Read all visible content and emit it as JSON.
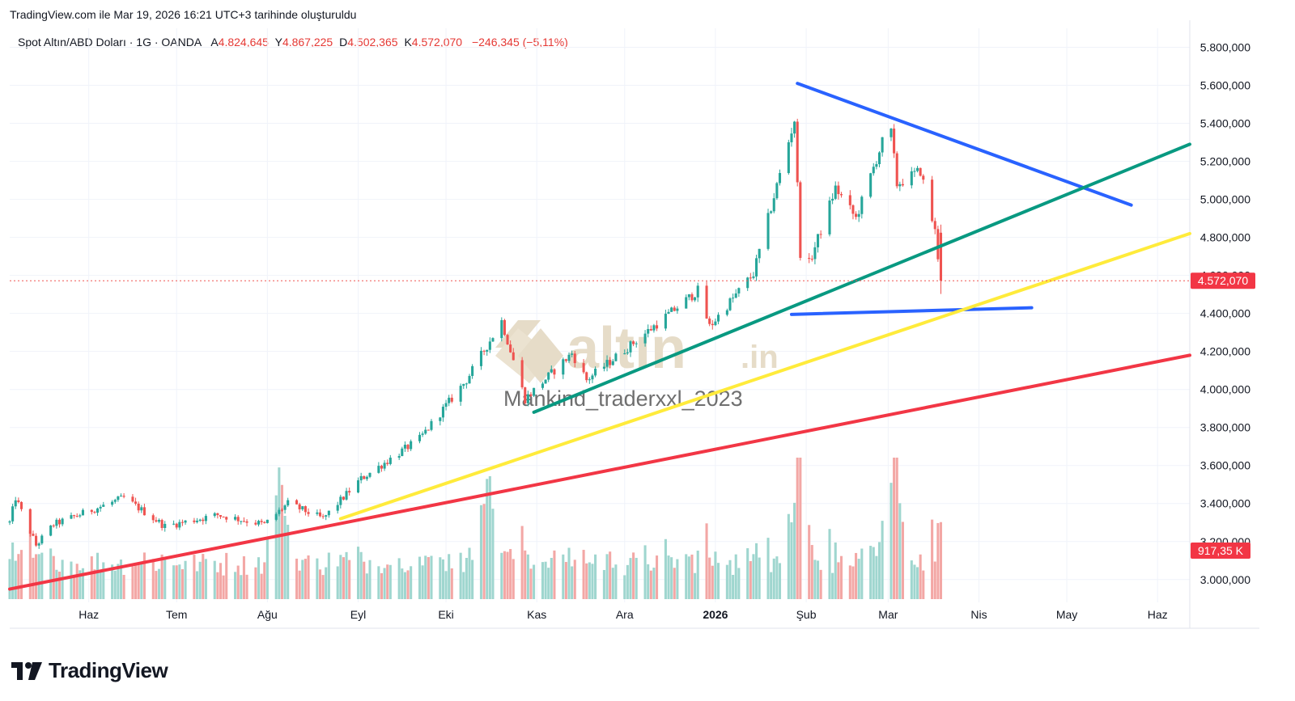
{
  "header": {
    "snapshot_text": "TradingView.com ile Mar 19, 2026 16:21 UTC+3 tarihinde oluşturuldu"
  },
  "symbol": {
    "name": "Spot Altın/ABD Doları · 1G · OANDA",
    "open_label": "A",
    "open_value": "4.824,645",
    "high_label": "Y",
    "high_value": "4.867,225",
    "low_label": "D",
    "low_value": "4.502,365",
    "close_label": "K",
    "close_value": "4.572,070",
    "change": "−246,345 (−5,11%)"
  },
  "price_tag": "4.572,070",
  "volume_tag": "917,35 K",
  "watermark": {
    "brand": "altın",
    "brand_suffix": ".in",
    "user": "Mankind_traderxxl_2023"
  },
  "footer": {
    "logo_text": "TradingView"
  },
  "colors": {
    "up": "#26a69a",
    "down": "#ef5350",
    "vol_up": "#9fd6cf",
    "vol_down": "#f3a7a5",
    "trend_blue": "#2962ff",
    "trend_green": "#089981",
    "trend_yellow": "#ffeb3b",
    "trend_red": "#f23645"
  },
  "chart_data": {
    "type": "candlestick",
    "title": "Spot Altın/ABD Doları · 1G · OANDA",
    "y_ticks": [
      "5.800,000",
      "5.600,000",
      "5.400,000",
      "5.200,000",
      "5.000,000",
      "4.800,000",
      "4.600,000",
      "4.400,000",
      "4.200,000",
      "4.000,000",
      "3.800,000",
      "3.600,000",
      "3.400,000",
      "3.200,000",
      "3.000,000"
    ],
    "y_tick_values": [
      5800,
      5600,
      5400,
      5200,
      5000,
      4800,
      4600,
      4400,
      4200,
      4000,
      3800,
      3600,
      3400,
      3200,
      3000
    ],
    "ylim": [
      2880,
      5900
    ],
    "x_ticks": [
      {
        "label": "Haz",
        "date": "2025-06-01",
        "bold": false
      },
      {
        "label": "Tem",
        "date": "2025-07-01",
        "bold": false
      },
      {
        "label": "Ağu",
        "date": "2025-08-01",
        "bold": false
      },
      {
        "label": "Eyl",
        "date": "2025-09-01",
        "bold": false
      },
      {
        "label": "Eki",
        "date": "2025-10-01",
        "bold": false
      },
      {
        "label": "Kas",
        "date": "2025-11-01",
        "bold": false
      },
      {
        "label": "Ara",
        "date": "2025-12-01",
        "bold": false
      },
      {
        "label": "2026",
        "date": "2026-01-01",
        "bold": true
      },
      {
        "label": "Şub",
        "date": "2026-02-01",
        "bold": false
      },
      {
        "label": "Mar",
        "date": "2026-03-01",
        "bold": false
      },
      {
        "label": "Nis",
        "date": "2026-04-01",
        "bold": false
      },
      {
        "label": "May",
        "date": "2026-05-01",
        "bold": false
      },
      {
        "label": "Haz",
        "date": "2026-06-01",
        "bold": false
      }
    ],
    "xlim": [
      "2025-05-05",
      "2026-06-12"
    ],
    "price_points": [
      {
        "date": "2025-05-05",
        "close": 3300
      },
      {
        "date": "2025-05-07",
        "close": 3430
      },
      {
        "date": "2025-05-14",
        "close": 3180
      },
      {
        "date": "2025-05-20",
        "close": 3290
      },
      {
        "date": "2025-06-01",
        "close": 3360
      },
      {
        "date": "2025-06-13",
        "close": 3430
      },
      {
        "date": "2025-06-27",
        "close": 3280
      },
      {
        "date": "2025-07-15",
        "close": 3340
      },
      {
        "date": "2025-07-31",
        "close": 3290
      },
      {
        "date": "2025-08-08",
        "close": 3400
      },
      {
        "date": "2025-08-20",
        "close": 3320
      },
      {
        "date": "2025-09-02",
        "close": 3530
      },
      {
        "date": "2025-09-22",
        "close": 3740
      },
      {
        "date": "2025-10-08",
        "close": 4050
      },
      {
        "date": "2025-10-20",
        "close": 4360
      },
      {
        "date": "2025-10-28",
        "close": 3950
      },
      {
        "date": "2025-11-13",
        "close": 4190
      },
      {
        "date": "2025-11-18",
        "close": 4050
      },
      {
        "date": "2025-12-02",
        "close": 4220
      },
      {
        "date": "2025-12-26",
        "close": 4520
      },
      {
        "date": "2025-12-30",
        "close": 4330
      },
      {
        "date": "2026-01-14",
        "close": 4610
      },
      {
        "date": "2026-01-28",
        "close": 5420
      },
      {
        "date": "2026-01-30",
        "close": 4720
      },
      {
        "date": "2026-02-02",
        "close": 4660
      },
      {
        "date": "2026-02-11",
        "close": 5060
      },
      {
        "date": "2026-02-18",
        "close": 4900
      },
      {
        "date": "2026-02-27",
        "close": 5300
      },
      {
        "date": "2026-03-02",
        "close": 5350
      },
      {
        "date": "2026-03-04",
        "close": 5080
      },
      {
        "date": "2026-03-12",
        "close": 5150
      },
      {
        "date": "2026-03-17",
        "close": 4830
      },
      {
        "date": "2026-03-19",
        "close": 4572
      }
    ],
    "trendlines": [
      {
        "color": "blue",
        "from": {
          "date": "2026-01-29",
          "price": 5610
        },
        "to": {
          "date": "2026-05-23",
          "price": 4970
        }
      },
      {
        "color": "blue",
        "from": {
          "date": "2026-01-27",
          "price": 4395
        },
        "to": {
          "date": "2026-04-19",
          "price": 4430
        }
      },
      {
        "color": "green",
        "from": {
          "date": "2025-10-31",
          "price": 3880
        },
        "to": {
          "date": "2026-06-12",
          "price": 5290
        }
      },
      {
        "color": "yellow",
        "from": {
          "date": "2025-08-26",
          "price": 3320
        },
        "to": {
          "date": "2026-06-12",
          "price": 4820
        }
      },
      {
        "color": "red",
        "from": {
          "date": "2025-05-05",
          "price": 2950
        },
        "to": {
          "date": "2026-06-12",
          "price": 4180
        }
      }
    ],
    "volume_spike_dates": [
      "2025-08-05",
      "2025-10-15",
      "2026-01-30",
      "2026-03-03"
    ],
    "last_price": 4572.07,
    "last_volume": "917,35 K",
    "grid": true,
    "legend": "none"
  }
}
